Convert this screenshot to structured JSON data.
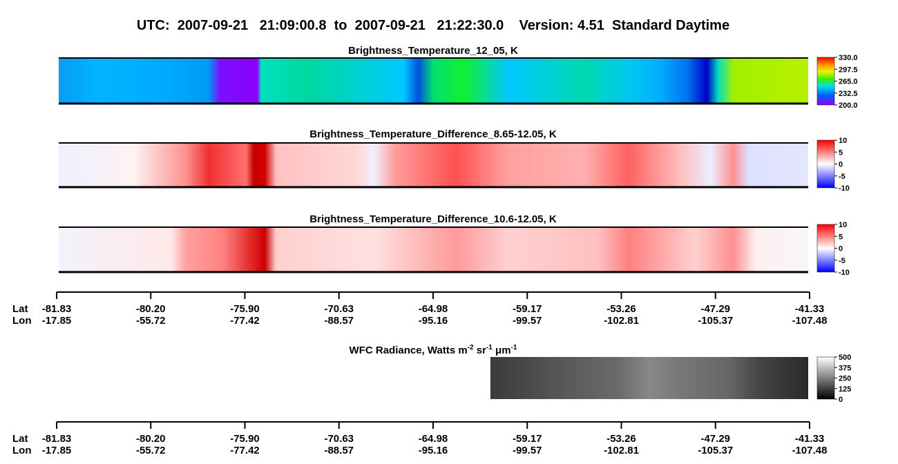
{
  "header": {
    "title": "UTC:  2007-09-21   21:09:00.8  to  2007-09-21   21:22:30.0    Version: 4.51  Standard Daytime"
  },
  "panels": [
    {
      "title": "Brightness_Temperature_12_05, K",
      "colorbar": [
        "330.0",
        "297.5",
        "265.0",
        "232.5",
        "200.0"
      ]
    },
    {
      "title": "Brightness_Temperature_Difference_8.65-12.05, K",
      "colorbar": [
        "10",
        "5",
        "0",
        "-5",
        "-10"
      ]
    },
    {
      "title": "Brightness_Temperature_Difference_10.6-12.05, K",
      "colorbar": [
        "10",
        "5",
        "0",
        "-5",
        "-10"
      ]
    },
    {
      "title": [
        "WFC Radiance, Watts m",
        " sr",
        " μm"
      ],
      "title_sup": [
        "-2",
        "-1",
        "-1"
      ],
      "colorbar": [
        "500",
        "375",
        "250",
        "125",
        "0"
      ]
    }
  ],
  "axis": {
    "lat_label": "Lat",
    "lon_label": "Lon",
    "lat": [
      "-81.83",
      "-80.20",
      "-75.90",
      "-70.63",
      "-64.98",
      "-59.17",
      "-53.26",
      "-47.29",
      "-41.33"
    ],
    "lon": [
      "-17.85",
      "-55.72",
      "-77.42",
      "-88.57",
      "-95.16",
      "-99.57",
      "-102.81",
      "-105.37",
      "-107.48"
    ]
  }
}
